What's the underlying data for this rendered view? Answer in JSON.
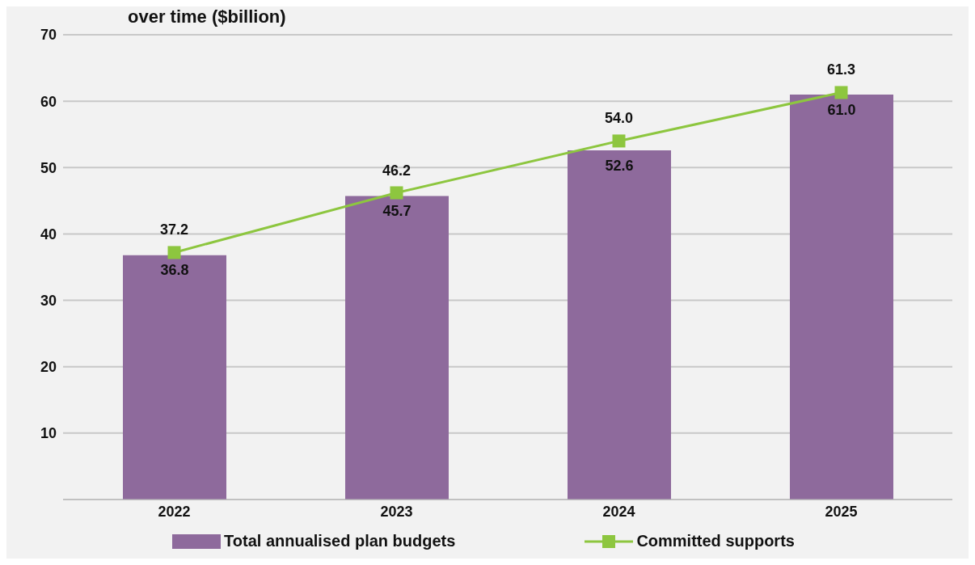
{
  "chart_data": {
    "type": "bar",
    "title": "over time ($billion)",
    "categories": [
      "2022",
      "2023",
      "2024",
      "2025"
    ],
    "series": [
      {
        "name": "Total annualised plan budgets",
        "color": "#8e6a9c",
        "values": [
          36.8,
          45.7,
          52.6,
          61.0
        ],
        "value_labels": [
          "36.8",
          "45.7",
          "52.6",
          "61.0"
        ]
      },
      {
        "name": "Committed supports",
        "type": "line",
        "color": "#8dc63f",
        "values": [
          37.2,
          46.2,
          54.0,
          61.3
        ],
        "value_labels": [
          "37.2",
          "46.2",
          "54.0",
          "61.3"
        ],
        "marker": "square"
      }
    ],
    "ylim": [
      0,
      70
    ],
    "yticks": [
      {
        "value": 0,
        "label": null
      },
      10,
      20,
      30,
      40,
      50,
      60,
      70
    ],
    "grid": "y",
    "legend": "bottom"
  }
}
